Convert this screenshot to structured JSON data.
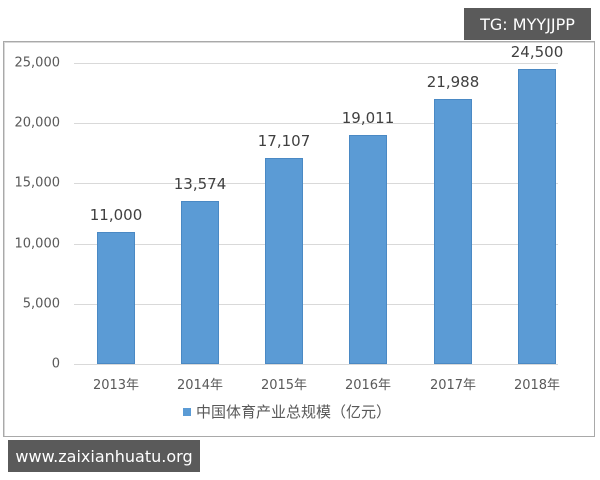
{
  "watermarks": {
    "top_right": "TG: MYYJJPP",
    "bottom_left": "www.zaixianhuatu.org"
  },
  "legend": {
    "label": "中国体育产业总规模（亿元）",
    "color": "#5b9bd5"
  },
  "y_axis": {
    "ticks": [
      "0",
      "5,000",
      "10,000",
      "15,000",
      "20,000",
      "25,000"
    ]
  },
  "bars": [
    {
      "year": "2013年",
      "value_label": "11,000"
    },
    {
      "year": "2014年",
      "value_label": "13,574"
    },
    {
      "year": "2015年",
      "value_label": "17,107"
    },
    {
      "year": "2016年",
      "value_label": "19,011"
    },
    {
      "year": "2017年",
      "value_label": "21,988"
    },
    {
      "year": "2018年",
      "value_label": "24,500"
    }
  ],
  "chart_data": {
    "type": "bar",
    "title": "",
    "categories": [
      "2013年",
      "2014年",
      "2015年",
      "2016年",
      "2017年",
      "2018年"
    ],
    "series": [
      {
        "name": "中国体育产业总规模（亿元）",
        "values": [
          11000,
          13574,
          17107,
          19011,
          21988,
          24500
        ],
        "color": "#5b9bd5"
      }
    ],
    "xlabel": "",
    "ylabel": "",
    "ylim": [
      0,
      25000
    ],
    "yticks": [
      0,
      5000,
      10000,
      15000,
      20000,
      25000
    ],
    "grid": true,
    "legend_position": "bottom",
    "data_labels": true
  }
}
